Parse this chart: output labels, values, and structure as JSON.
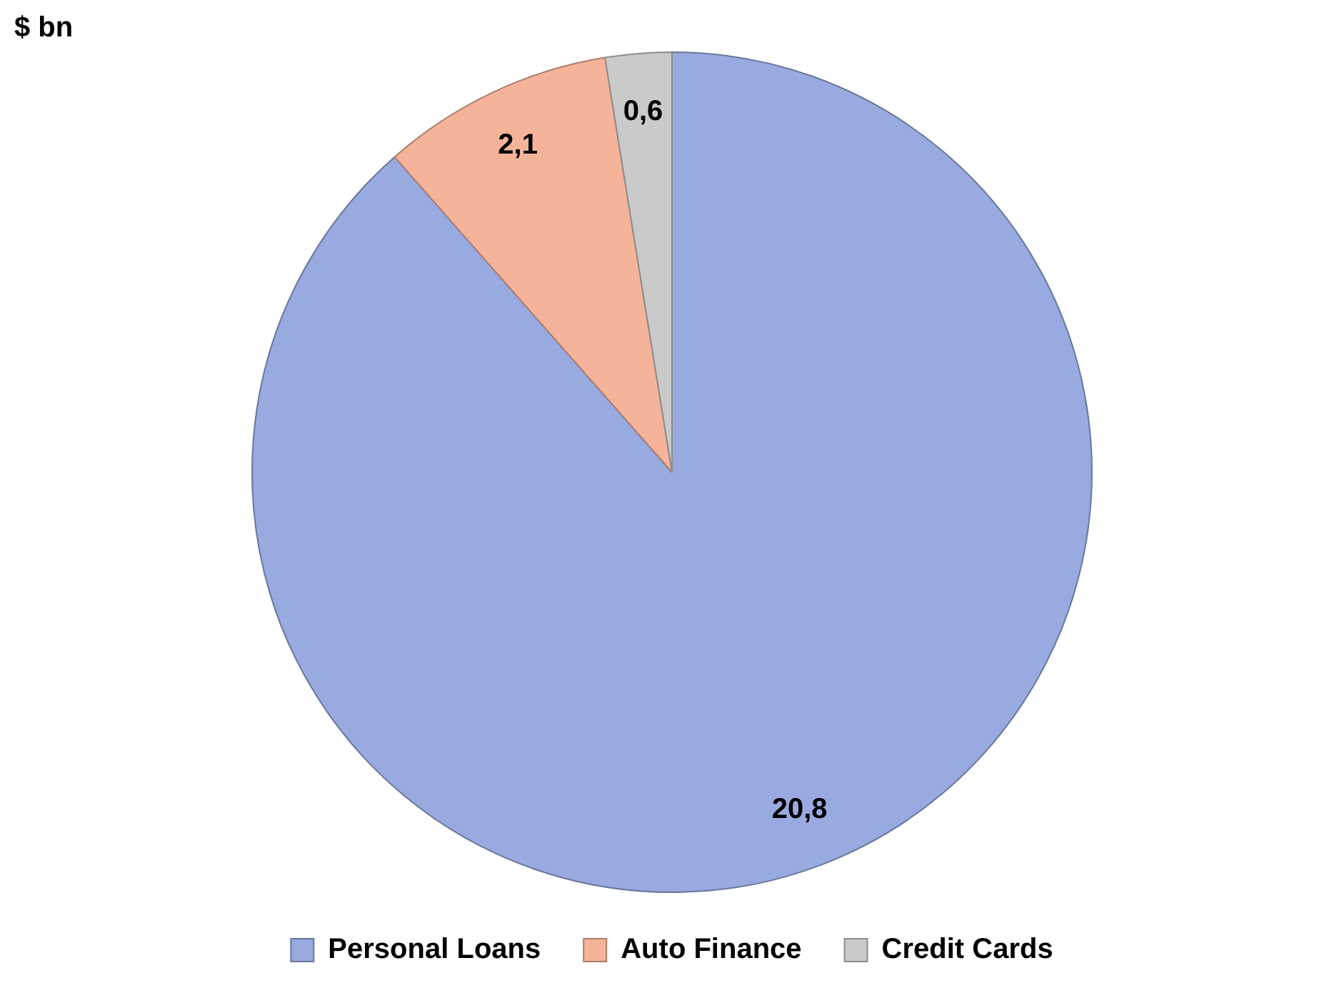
{
  "chart_data": {
    "type": "pie",
    "title": "$ bn",
    "categories": [
      "Personal Loans",
      "Auto Finance",
      "Credit Cards"
    ],
    "values": [
      20.8,
      2.1,
      0.6
    ],
    "value_labels": [
      "20,8",
      "2,1",
      "0,6"
    ],
    "colors": [
      "#98aadf",
      "#f5b49a",
      "#cacaca"
    ],
    "legend": "bottom"
  }
}
